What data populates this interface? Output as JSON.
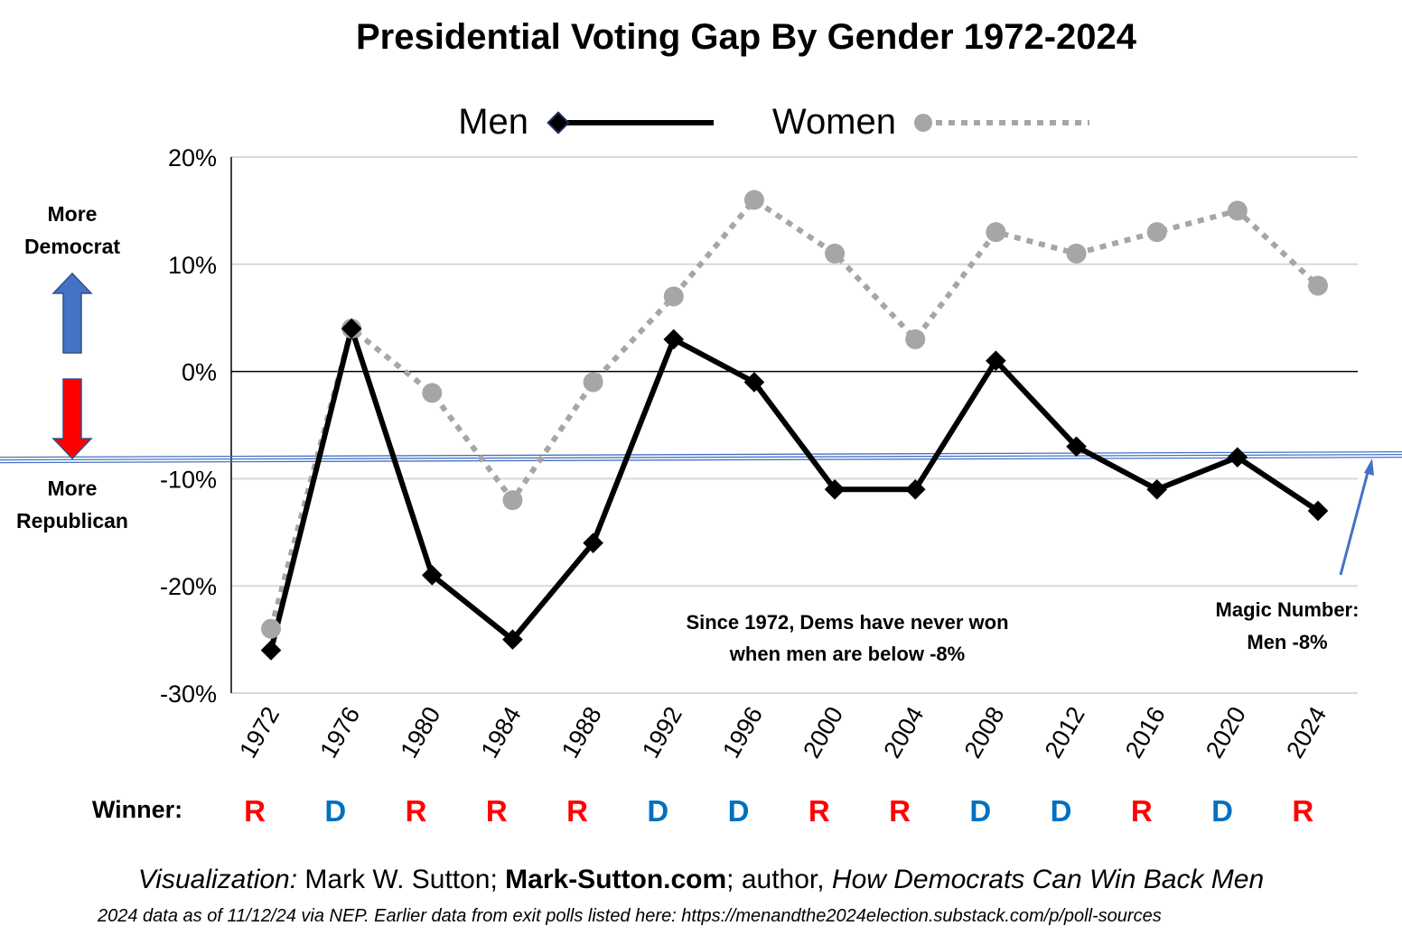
{
  "chart_data": {
    "type": "line",
    "title": "Presidential Voting Gap By Gender 1972-2024",
    "categories": [
      "1972",
      "1976",
      "1980",
      "1984",
      "1988",
      "1992",
      "1996",
      "2000",
      "2004",
      "2008",
      "2012",
      "2016",
      "2020",
      "2024"
    ],
    "series": [
      {
        "name": "Men",
        "values": [
          -26,
          4,
          -19,
          -25,
          -16,
          3,
          -1,
          -11,
          -11,
          1,
          -7,
          -11,
          -8,
          -13
        ],
        "color": "#000000",
        "marker": "diamond",
        "line": "solid"
      },
      {
        "name": "Women",
        "values": [
          -24,
          4,
          -2,
          -12,
          -1,
          7,
          16,
          11,
          3,
          13,
          11,
          13,
          15,
          8
        ],
        "color": "#a6a6a6",
        "marker": "circle",
        "line": "dotted"
      }
    ],
    "y_ticks": [
      "20%",
      "10%",
      "0%",
      "-10%",
      "-20%",
      "-30%"
    ],
    "y_tick_values": [
      20,
      10,
      0,
      -10,
      -20,
      -30
    ],
    "ylim": [
      -30,
      20
    ],
    "grid": true,
    "legend_position": "top",
    "reference_line": {
      "value": -8,
      "color": "#4472c4"
    },
    "annotations": {
      "since_line1": "Since 1972, Dems have never won",
      "since_line2": "when men are below -8%",
      "magic_line1": "Magic Number:",
      "magic_line2": "Men -8%"
    },
    "side_labels": {
      "dem_line1": "More",
      "dem_line2": "Democrat",
      "rep_line1": "More",
      "rep_line2": "Republican",
      "dem_arrow_color": "#4472c4",
      "rep_arrow_color": "#ff0000"
    },
    "winners": {
      "label": "Winner:",
      "letters": [
        "R",
        "D",
        "R",
        "R",
        "R",
        "D",
        "D",
        "R",
        "R",
        "D",
        "D",
        "R",
        "D",
        "R"
      ],
      "colors": {
        "R": "#ff0000",
        "D": "#0070c0"
      }
    }
  },
  "footer": {
    "credit_viz": "Visualization:",
    "credit_name": " Mark W. Sutton; ",
    "credit_site": "Mark-Sutton.com",
    "credit_author": "; author, ",
    "credit_book": "How Democrats Can Win Back Men",
    "source_note": "2024 data as of 11/12/24 via NEP. Earlier data from exit polls listed here: https://menandthe2024election.substack.com/p/poll-sources"
  }
}
